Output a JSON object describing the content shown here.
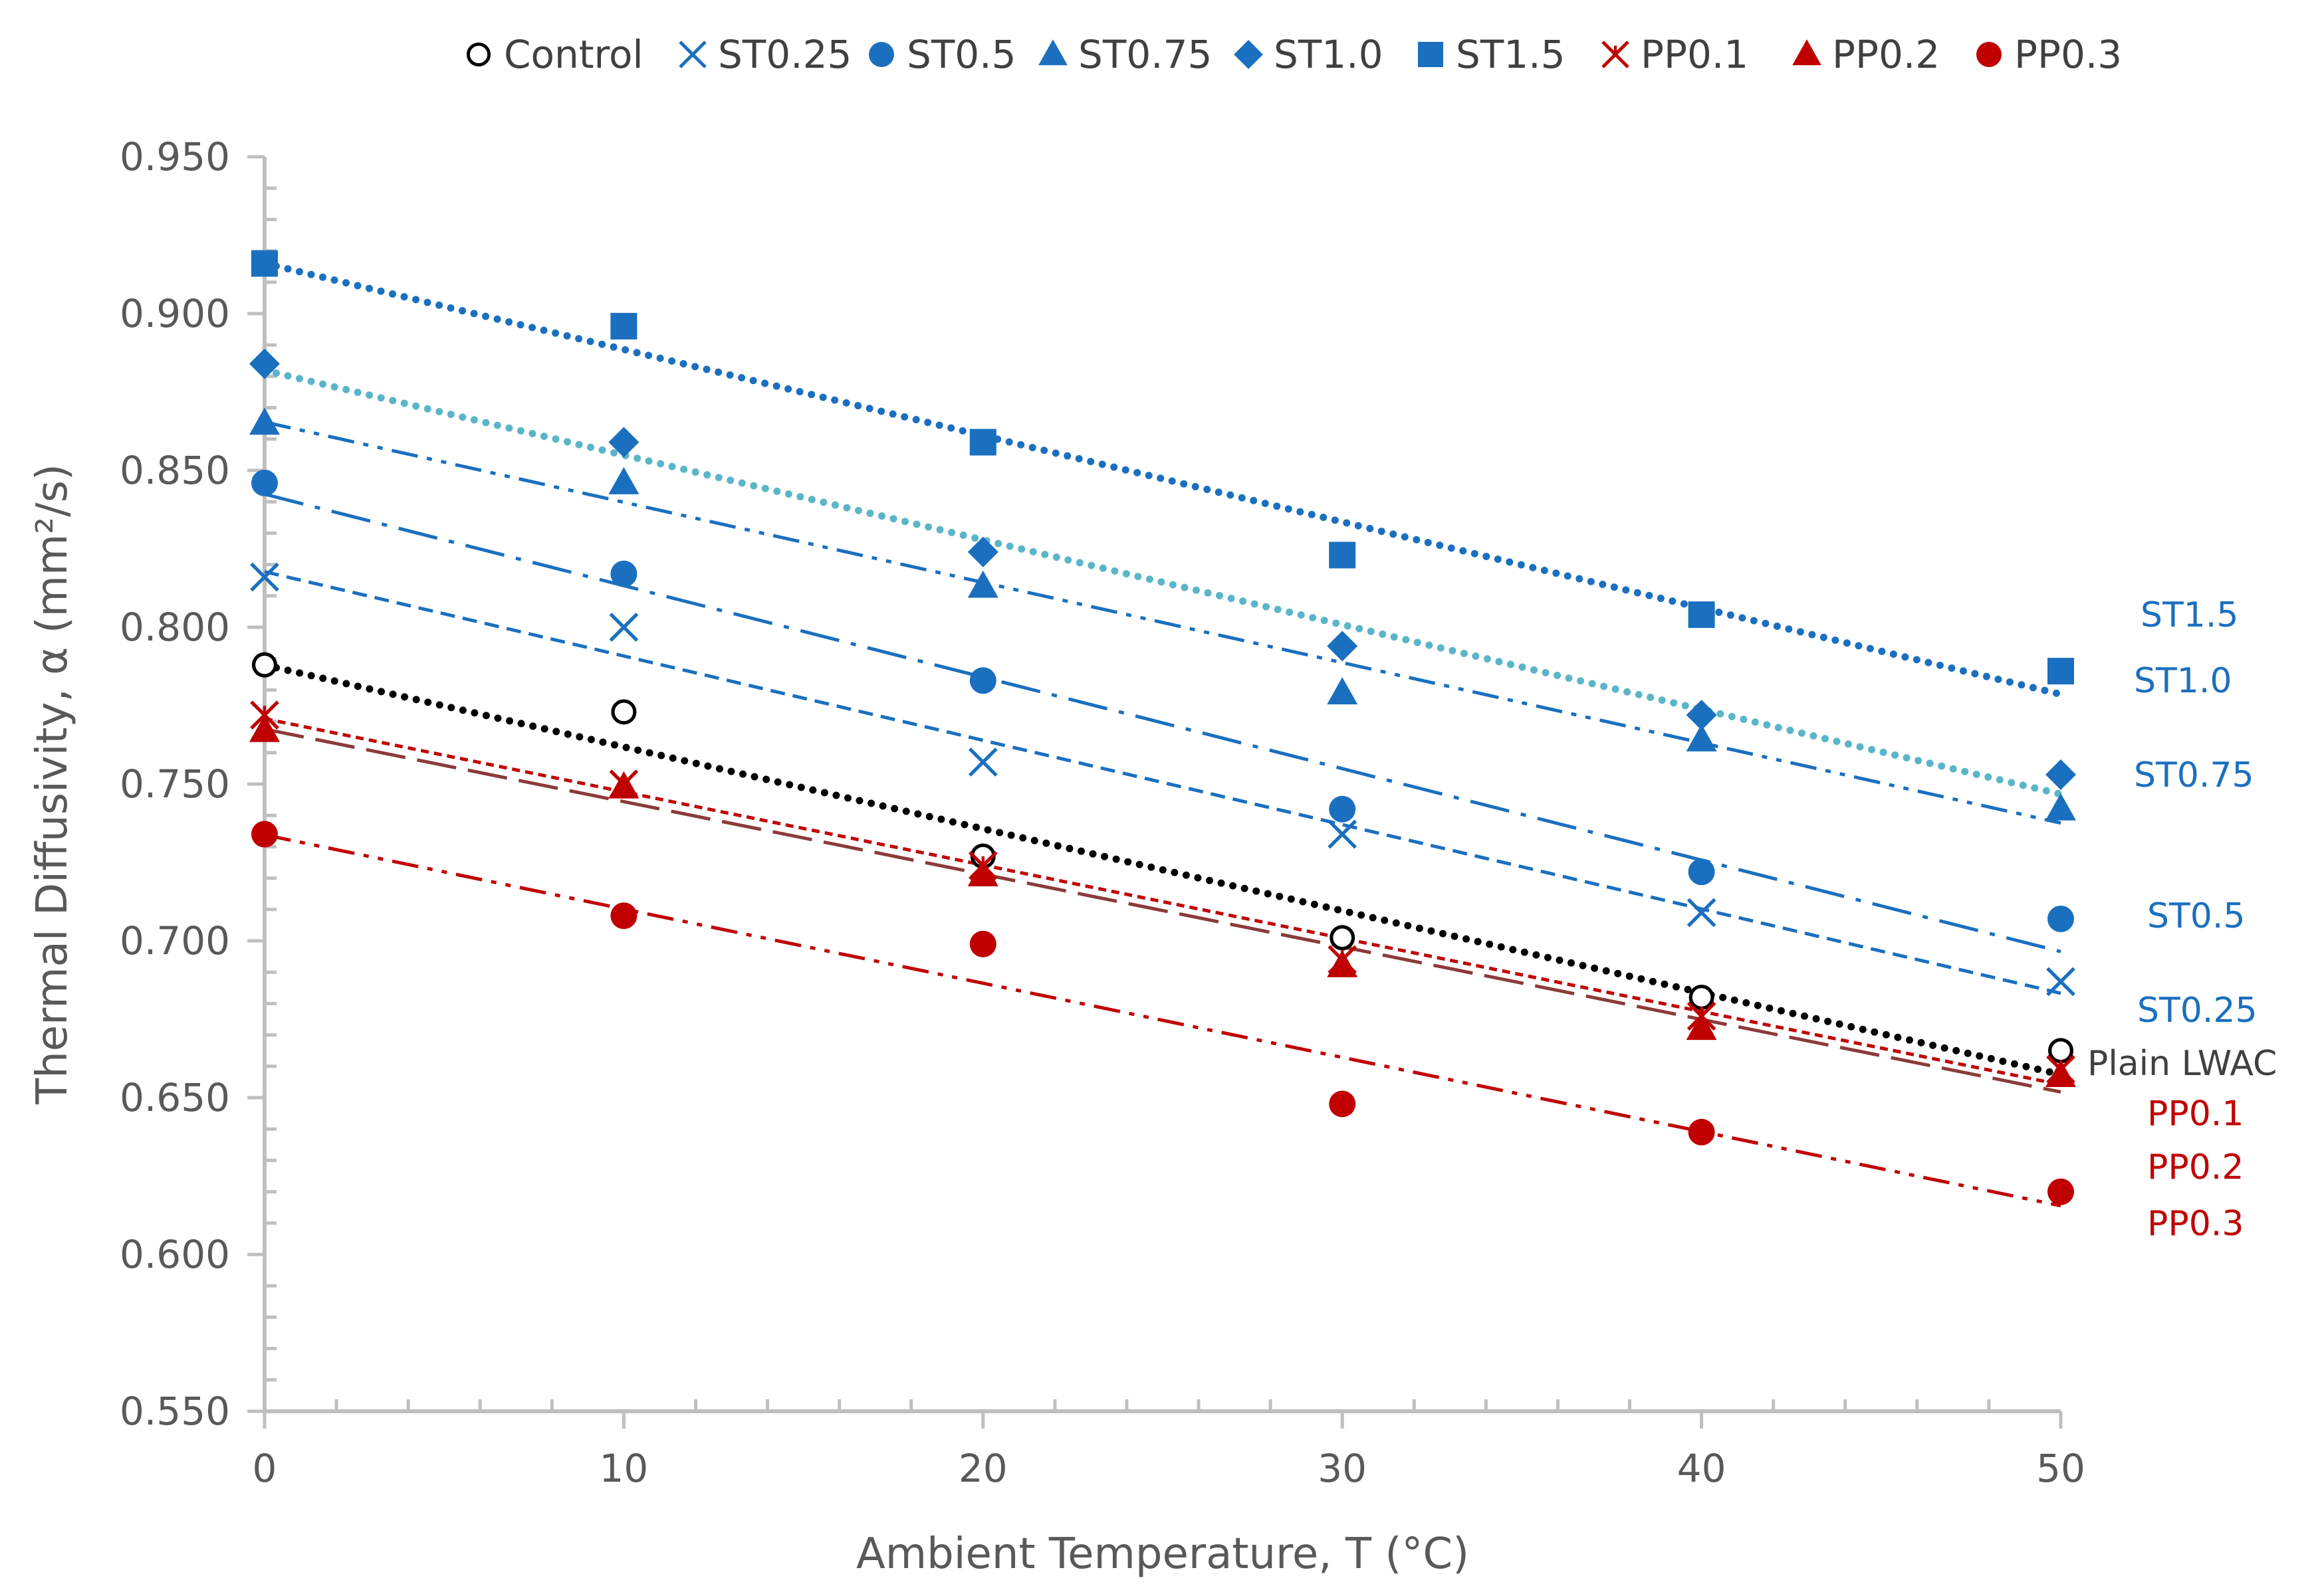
{
  "chart_data": {
    "type": "scatter",
    "title": "",
    "xlabel": "Ambient Temperature, T (°C)",
    "ylabel": "Thermal Diffusivity, α (mm²/s)",
    "xlim": [
      0,
      50
    ],
    "ylim": [
      0.55,
      0.95
    ],
    "x_ticks": [
      "0",
      "10",
      "20",
      "30",
      "40",
      "50"
    ],
    "y_ticks": [
      "0.550",
      "0.600",
      "0.650",
      "0.700",
      "0.750",
      "0.800",
      "0.850",
      "0.900",
      "0.950"
    ],
    "x": [
      0,
      10,
      20,
      30,
      40,
      50
    ],
    "legend_position": "top",
    "series": [
      {
        "name": "Control",
        "marker": "circle-open",
        "color": "#000000",
        "trend": "dotted",
        "trend_color": "#000000",
        "values": [
          0.788,
          0.773,
          0.727,
          0.701,
          0.682,
          0.665
        ],
        "end_label": "Plain LWAC",
        "end_label_color": "#404040"
      },
      {
        "name": "ST0.25",
        "marker": "x",
        "color": "#1B6FBF",
        "trend": "dash",
        "trend_color": "#1B6FBF",
        "values": [
          0.816,
          0.8,
          0.757,
          0.734,
          0.709,
          0.687
        ],
        "end_label": "ST0.25",
        "end_label_color": "#1B6FBF"
      },
      {
        "name": "ST0.5",
        "marker": "circle",
        "color": "#1B6FBF",
        "trend": "longdashdot",
        "trend_color": "#1B6FBF",
        "values": [
          0.846,
          0.817,
          0.783,
          0.742,
          0.722,
          0.707
        ],
        "end_label": "ST0.5",
        "end_label_color": "#1B6FBF"
      },
      {
        "name": "ST0.75",
        "marker": "triangle",
        "color": "#1B6FBF",
        "trend": "dashdotdot",
        "trend_color": "#1B6FBF",
        "values": [
          0.865,
          0.846,
          0.813,
          0.779,
          0.764,
          0.742
        ],
        "end_label": "ST0.75",
        "end_label_color": "#1B6FBF"
      },
      {
        "name": "ST1.0",
        "marker": "diamond",
        "color": "#1B6FBF",
        "trend": "dotted-thick",
        "trend_color": "#5BB5C8",
        "values": [
          0.884,
          0.859,
          0.824,
          0.794,
          0.772,
          0.753
        ],
        "end_label": "ST1.0",
        "end_label_color": "#1B6FBF"
      },
      {
        "name": "ST1.5",
        "marker": "square",
        "color": "#1B6FBF",
        "trend": "dotted-thick",
        "trend_color": "#1B6FBF",
        "values": [
          0.916,
          0.896,
          0.859,
          0.823,
          0.804,
          0.786
        ],
        "end_label": "ST1.5",
        "end_label_color": "#1B6FBF"
      },
      {
        "name": "PP0.1",
        "marker": "star-x",
        "color": "#C00000",
        "trend": "shortdash",
        "trend_color": "#C00000",
        "values": [
          0.772,
          0.75,
          0.724,
          0.694,
          0.676,
          0.659
        ],
        "end_label": "PP0.1",
        "end_label_color": "#C00000"
      },
      {
        "name": "PP0.2",
        "marker": "triangle",
        "color": "#C00000",
        "trend": "longdash",
        "trend_color": "#8B3A3A",
        "values": [
          0.767,
          0.749,
          0.721,
          0.692,
          0.672,
          0.657
        ],
        "end_label": "PP0.2",
        "end_label_color": "#C00000"
      },
      {
        "name": "PP0.3",
        "marker": "circle",
        "color": "#C00000",
        "trend": "dashdotdot",
        "trend_color": "#C00000",
        "values": [
          0.734,
          0.708,
          0.699,
          0.648,
          0.639,
          0.62
        ],
        "end_label": "PP0.3",
        "end_label_color": "#C00000"
      }
    ]
  }
}
